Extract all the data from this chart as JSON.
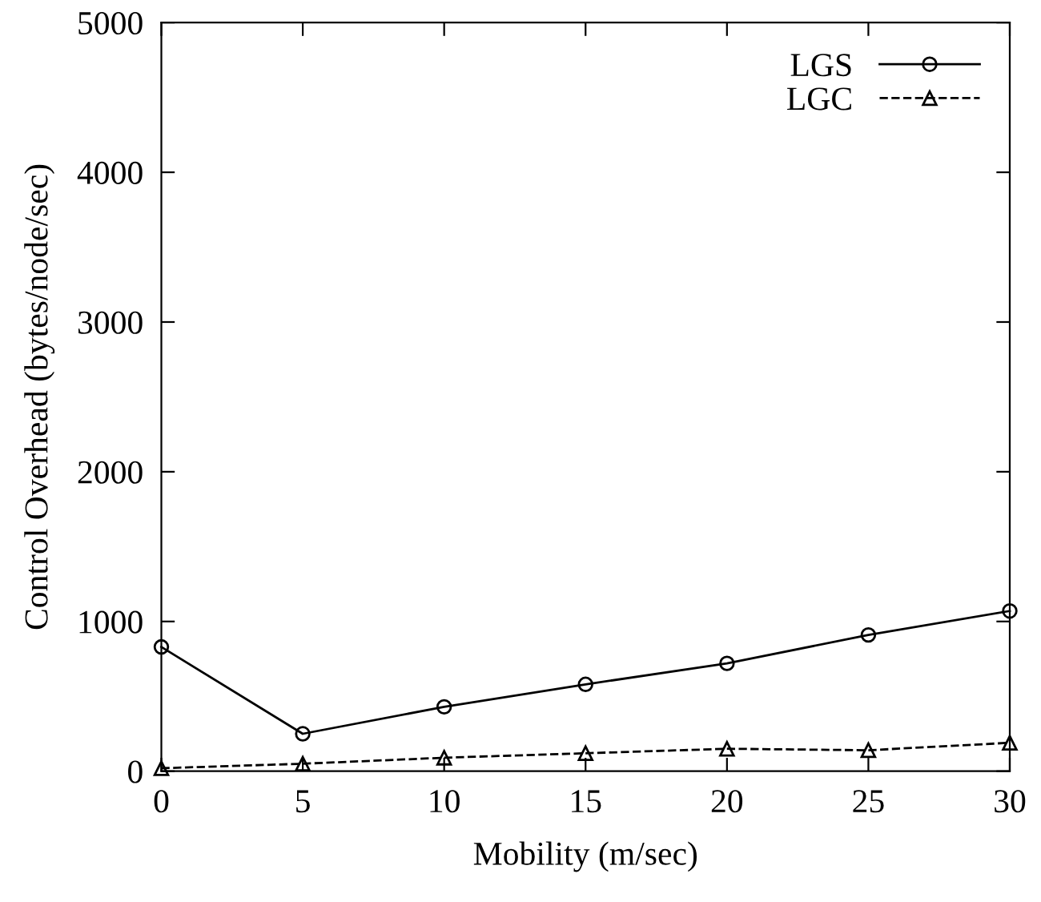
{
  "chart_data": {
    "type": "line",
    "xlabel": "Mobility (m/sec)",
    "ylabel": "Control Overhead (bytes/node/sec)",
    "x": [
      0,
      5,
      10,
      15,
      20,
      25,
      30
    ],
    "series": [
      {
        "name": "LGS",
        "color": "#000000",
        "values": [
          830,
          250,
          430,
          580,
          720,
          910,
          1070
        ],
        "marker": "circle",
        "line_style": "solid"
      },
      {
        "name": "LGC",
        "color": "#000000",
        "values": [
          20,
          50,
          90,
          120,
          150,
          140,
          190
        ],
        "marker": "triangle",
        "line_style": "dashed"
      }
    ],
    "xlim": [
      0,
      30
    ],
    "xticks": [
      0,
      5,
      10,
      15,
      20,
      25,
      30
    ],
    "ylim": [
      0,
      5000
    ],
    "yticks": [
      0,
      1000,
      2000,
      3000,
      4000,
      5000
    ],
    "grid": false,
    "legend": "top right"
  }
}
